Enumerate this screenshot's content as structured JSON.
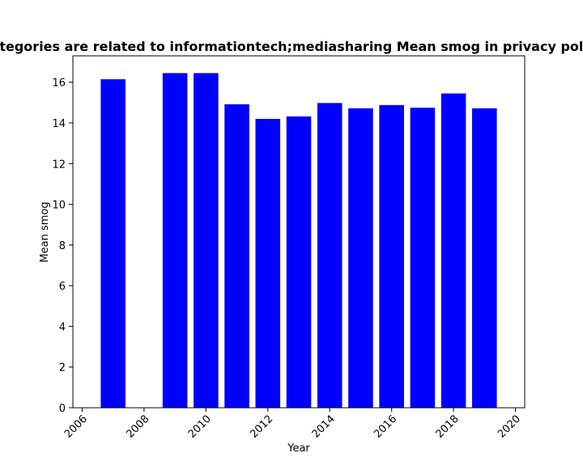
{
  "chart_data": {
    "type": "bar",
    "title": "Categories are related to informationtech;mediasharing Mean smog in privacy policies",
    "xlabel": "Year",
    "ylabel": "Mean smog",
    "x": [
      2007,
      2009,
      2010,
      2011,
      2012,
      2013,
      2014,
      2015,
      2016,
      2017,
      2018,
      2019
    ],
    "values": [
      16.15,
      16.45,
      16.45,
      14.92,
      14.2,
      14.32,
      14.98,
      14.72,
      14.88,
      14.75,
      15.45,
      14.72
    ],
    "xlim": [
      2005.7,
      2020.3
    ],
    "ylim": [
      0,
      17.3
    ],
    "xticks": [
      2006,
      2008,
      2010,
      2012,
      2014,
      2016,
      2018,
      2020
    ],
    "yticks": [
      0,
      2,
      4,
      6,
      8,
      10,
      12,
      14,
      16
    ],
    "bar_color": "#0000ff",
    "grid": false,
    "legend": "none"
  }
}
